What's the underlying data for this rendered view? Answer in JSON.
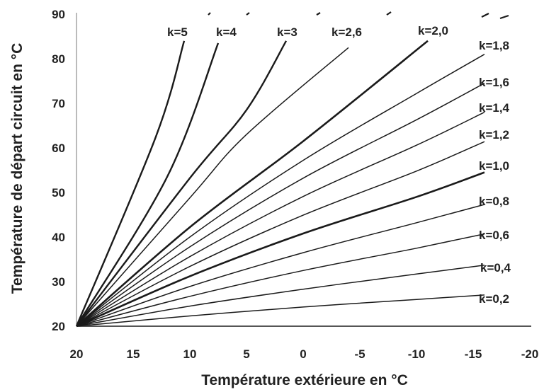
{
  "chart_data": {
    "type": "line",
    "title": "",
    "xlabel": "Température extérieure en °C",
    "ylabel": "Température de départ circuit en °C",
    "xlim": [
      20,
      -20
    ],
    "ylim": [
      20,
      90
    ],
    "x_ticks": [
      "20",
      "15",
      "10",
      "5",
      "0",
      "-5",
      "-10",
      "-15",
      "-20"
    ],
    "y_ticks": [
      "20",
      "30",
      "40",
      "50",
      "60",
      "70",
      "80",
      "90"
    ],
    "grid": false,
    "legend": "none",
    "series": [
      {
        "name": "k=0,2",
        "x": [
          20,
          10,
          0,
          -10,
          -16
        ],
        "y": [
          20,
          22.3,
          24.3,
          26.0,
          27.0
        ]
      },
      {
        "name": "k=0,4",
        "x": [
          20,
          10,
          0,
          -10,
          -16
        ],
        "y": [
          20,
          24.5,
          28.3,
          31.7,
          33.7
        ]
      },
      {
        "name": "k=0,6",
        "x": [
          20,
          10,
          0,
          -10,
          -16
        ],
        "y": [
          20,
          26.7,
          32.5,
          37.5,
          40.7
        ]
      },
      {
        "name": "k=0,8",
        "x": [
          20,
          10,
          0,
          -10,
          -16
        ],
        "y": [
          20,
          28.9,
          36.5,
          43.2,
          47.3
        ]
      },
      {
        "name": "k=1,0",
        "x": [
          20,
          10,
          0,
          -10,
          -16
        ],
        "y": [
          20,
          31.2,
          40.8,
          49.0,
          54.5
        ]
      },
      {
        "name": "k=1,2",
        "x": [
          20,
          10,
          0,
          -10,
          -16
        ],
        "y": [
          20,
          33.4,
          44.9,
          54.8,
          61.4
        ]
      },
      {
        "name": "k=1,4",
        "x": [
          20,
          10,
          0,
          -10,
          -16
        ],
        "y": [
          20,
          35.6,
          49.1,
          60.6,
          68.0
        ]
      },
      {
        "name": "k=1,6",
        "x": [
          20,
          10,
          0,
          -10,
          -16
        ],
        "y": [
          20,
          37.8,
          53.2,
          66.3,
          74.5
        ]
      },
      {
        "name": "k=1,8",
        "x": [
          20,
          10,
          0,
          -10,
          -16
        ],
        "y": [
          20,
          40.0,
          57.2,
          72.2,
          81.0
        ]
      },
      {
        "name": "k=2,0",
        "x": [
          20,
          10,
          0,
          -11
        ],
        "y": [
          20,
          42.2,
          61.5,
          84.0
        ]
      },
      {
        "name": "k=2,6",
        "x": [
          20,
          10,
          5,
          -4
        ],
        "y": [
          20,
          48.8,
          63.0,
          82.5
        ]
      },
      {
        "name": "k=3",
        "x": [
          20,
          10,
          5,
          1.5
        ],
        "y": [
          20,
          53.2,
          68.5,
          84.0
        ]
      },
      {
        "name": "k=4",
        "x": [
          20,
          12,
          7.5
        ],
        "y": [
          20,
          53.5,
          83.5
        ]
      },
      {
        "name": "k=5",
        "x": [
          20,
          13,
          10.5
        ],
        "y": [
          20,
          62.5,
          84.0
        ]
      }
    ]
  }
}
